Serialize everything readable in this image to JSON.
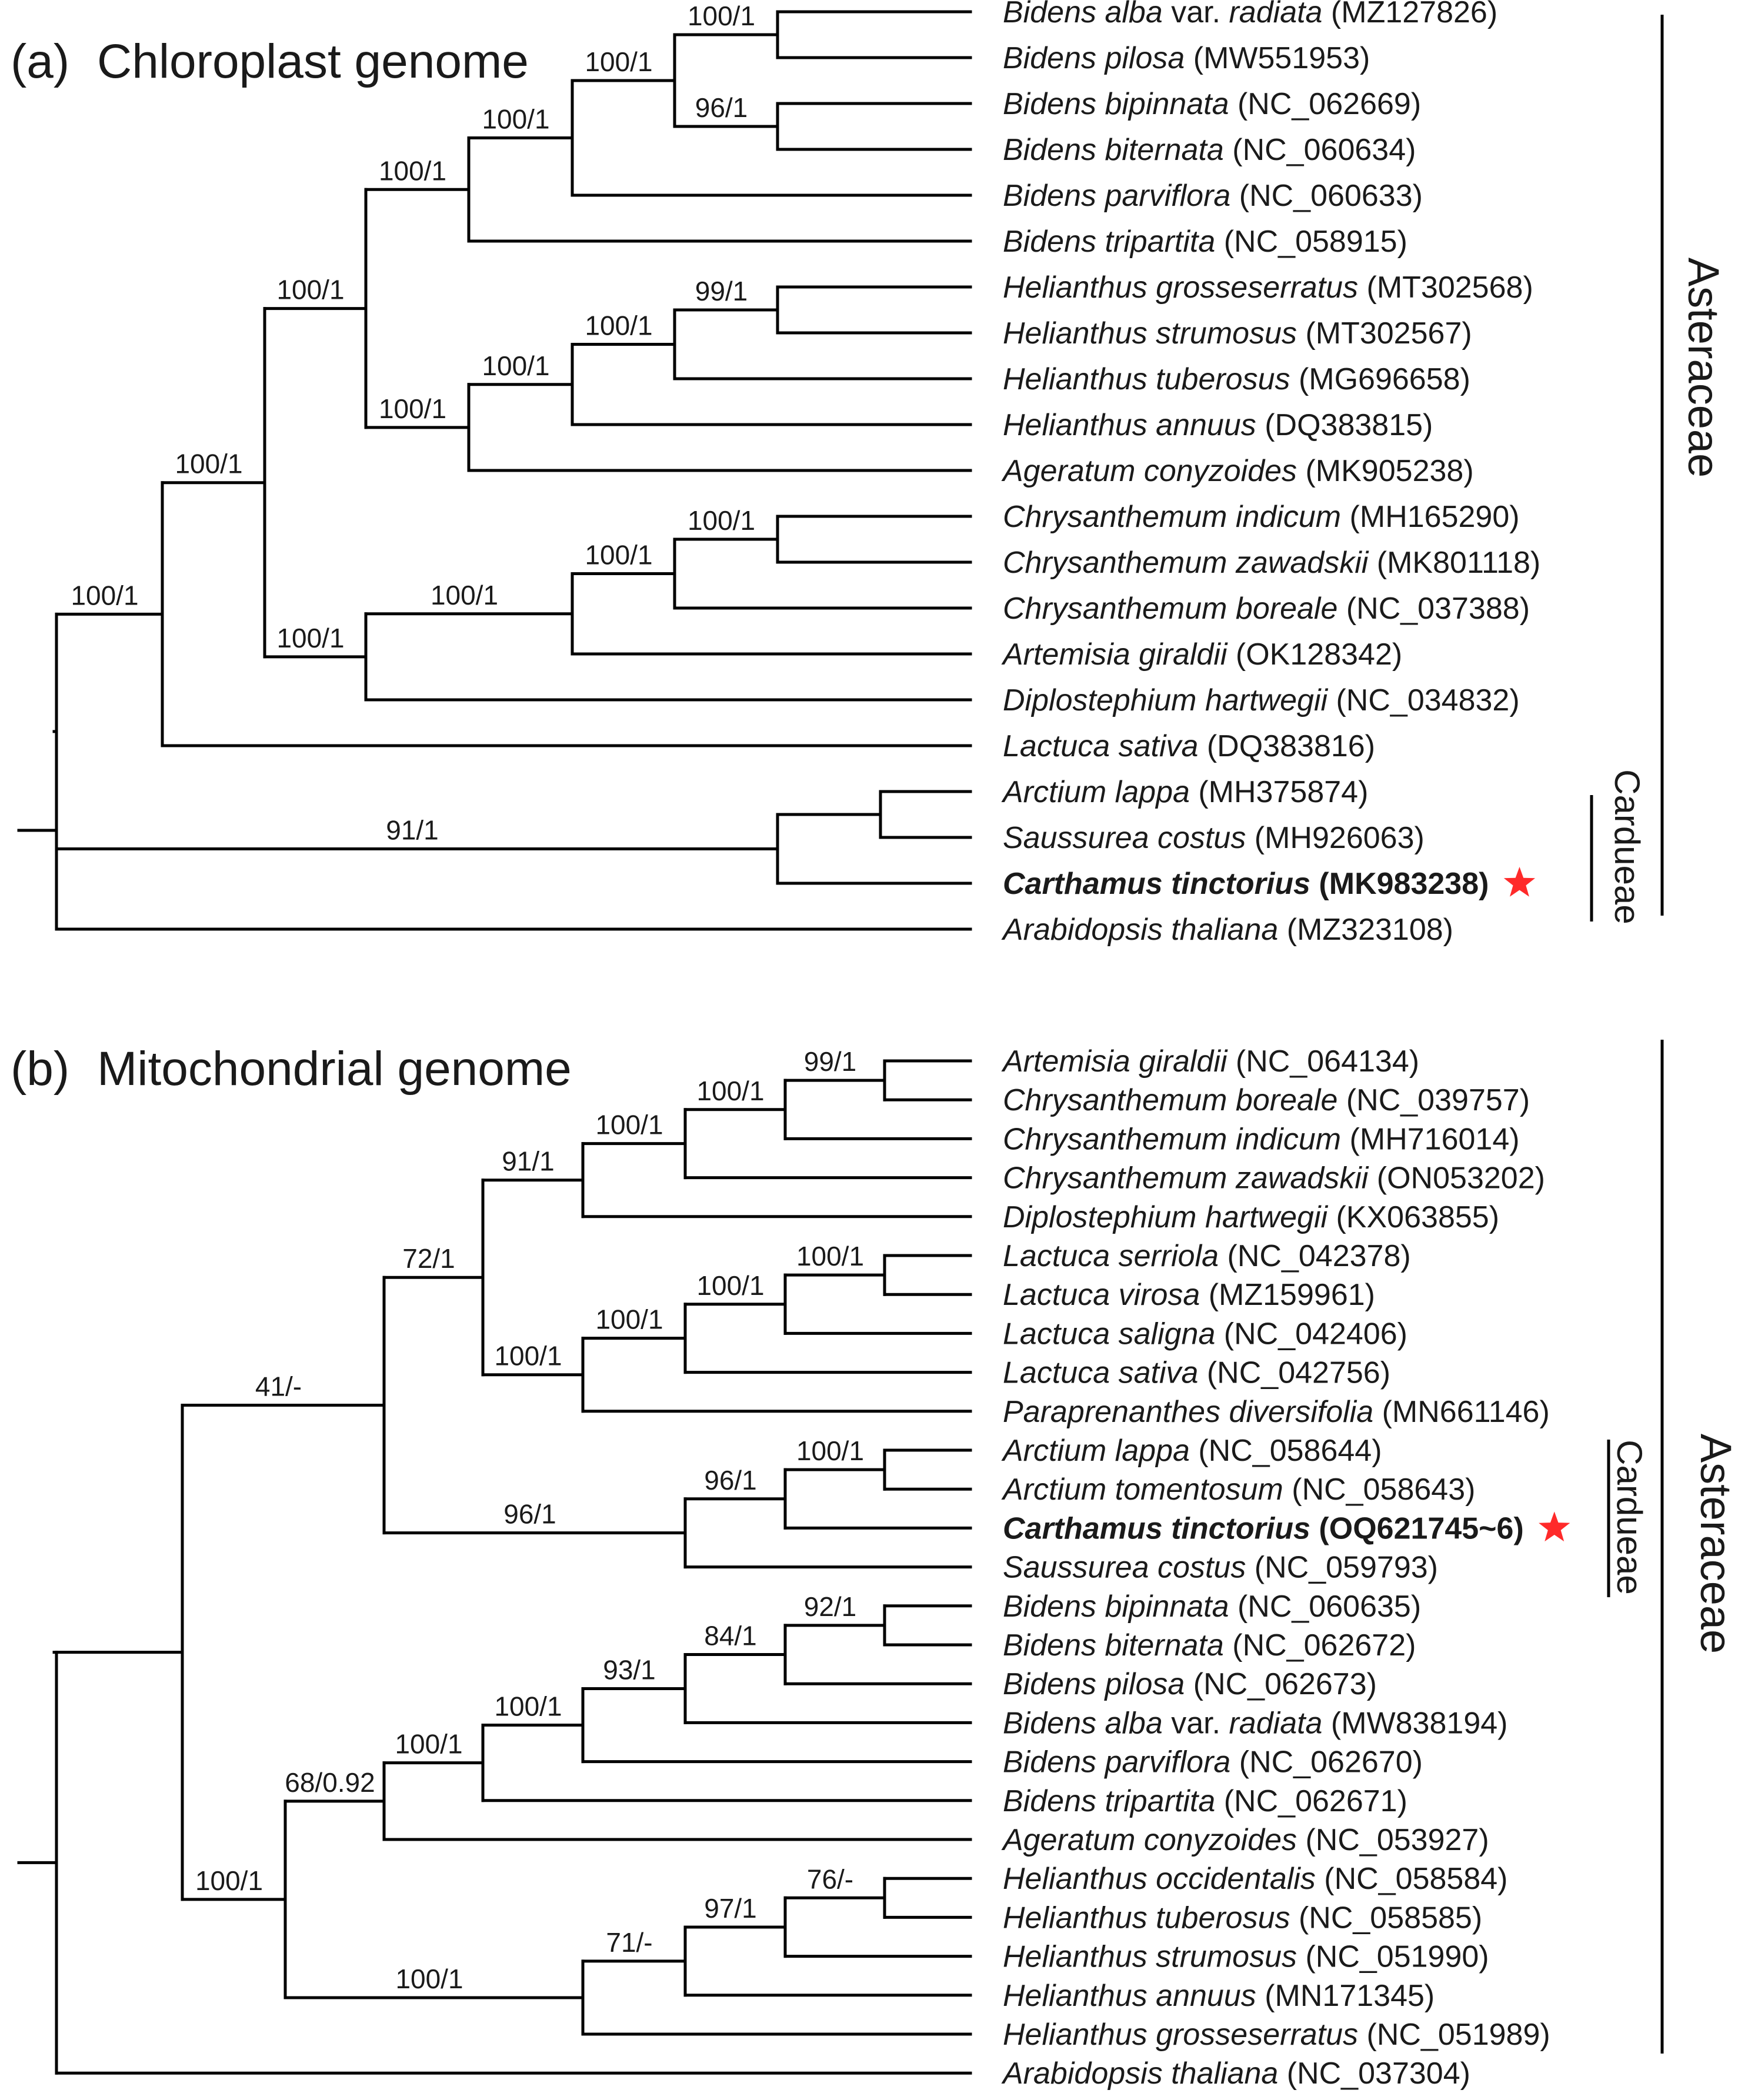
{
  "colors": {
    "star": "#ff2a2a",
    "line": "#000000"
  },
  "panels": [
    {
      "id": "a",
      "letter": "(a)",
      "title": "Chloroplast genome",
      "clade_labels": {
        "family": "Asteraceae",
        "tribe": "Cardueae"
      },
      "tips": [
        {
          "genus": "Bidens alba",
          "rank": "var.",
          "epithet": "radiata",
          "acc": "(MZ127826)"
        },
        {
          "genus": "Bidens pilosa",
          "acc": "(MW551953)"
        },
        {
          "genus": "Bidens bipinnata",
          "acc": "(NC_062669)"
        },
        {
          "genus": "Bidens biternata",
          "acc": "(NC_060634)"
        },
        {
          "genus": "Bidens parviflora",
          "acc": "(NC_060633)"
        },
        {
          "genus": "Bidens tripartita",
          "acc": "(NC_058915)"
        },
        {
          "genus": "Helianthus grosseserratus",
          "acc": "(MT302568)"
        },
        {
          "genus": "Helianthus strumosus",
          "acc": "(MT302567)"
        },
        {
          "genus": "Helianthus tuberosus",
          "acc": "(MG696658)"
        },
        {
          "genus": "Helianthus annuus",
          "acc": "(DQ383815)"
        },
        {
          "genus": "Ageratum conyzoides",
          "acc": "(MK905238)"
        },
        {
          "genus": "Chrysanthemum indicum",
          "acc": "(MH165290)"
        },
        {
          "genus": "Chrysanthemum zawadskii",
          "acc": "(MK801118)"
        },
        {
          "genus": "Chrysanthemum boreale",
          "acc": "(NC_037388)"
        },
        {
          "genus": "Artemisia giraldii",
          "acc": "(OK128342)"
        },
        {
          "genus": "Diplostephium hartwegii",
          "acc": "(NC_034832)"
        },
        {
          "genus": "Lactuca sativa",
          "acc": "(DQ383816)"
        },
        {
          "genus": "Arctium lappa",
          "acc": "(MH375874)"
        },
        {
          "genus": "Saussurea costus",
          "acc": "(MH926063)"
        },
        {
          "genus": "Carthamus tinctorius",
          "acc": "(MK983238)",
          "bold": true,
          "star": true
        },
        {
          "genus": "Arabidopsis thaliana",
          "acc": "(MZ323108)"
        }
      ],
      "supports": [
        "100/1",
        "100/1",
        "100/1",
        "100/1",
        "100/1",
        "100/1",
        "100/1",
        "96/1",
        "100/1",
        "100/1",
        "100/1",
        "99/1",
        "100/1",
        "100/1",
        "100/1",
        "100/1",
        "91/1"
      ]
    },
    {
      "id": "b",
      "letter": "(b)",
      "title": "Mitochondrial genome",
      "clade_labels": {
        "family": "Asteraceae",
        "tribe": "Cardueae"
      },
      "tips": [
        {
          "genus": "Artemisia giraldii",
          "acc": "(NC_064134)"
        },
        {
          "genus": "Chrysanthemum boreale",
          "acc": "(NC_039757)"
        },
        {
          "genus": "Chrysanthemum indicum",
          "acc": "(MH716014)"
        },
        {
          "genus": "Chrysanthemum zawadskii",
          "acc": "(ON053202)"
        },
        {
          "genus": "Diplostephium hartwegii",
          "acc": "(KX063855)"
        },
        {
          "genus": "Lactuca serriola",
          "acc": "(NC_042378)"
        },
        {
          "genus": "Lactuca virosa",
          "acc": "(MZ159961)"
        },
        {
          "genus": "Lactuca saligna",
          "acc": "(NC_042406)"
        },
        {
          "genus": "Lactuca sativa",
          "acc": "(NC_042756)"
        },
        {
          "genus": "Paraprenanthes diversifolia",
          "acc": "(MN661146)"
        },
        {
          "genus": "Arctium lappa",
          "acc": "(NC_058644)"
        },
        {
          "genus": "Arctium tomentosum",
          "acc": "(NC_058643)"
        },
        {
          "genus": "Carthamus tinctorius",
          "acc": "(OQ621745~6)",
          "bold": true,
          "star": true
        },
        {
          "genus": "Saussurea costus",
          "acc": "(NC_059793)"
        },
        {
          "genus": "Bidens bipinnata",
          "acc": "(NC_060635)"
        },
        {
          "genus": "Bidens biternata",
          "acc": "(NC_062672)"
        },
        {
          "genus": "Bidens pilosa",
          "acc": "(NC_062673)"
        },
        {
          "genus": "Bidens alba",
          "rank": "var.",
          "epithet": "radiata",
          "acc": "(MW838194)"
        },
        {
          "genus": "Bidens parviflora",
          "acc": "(NC_062670)"
        },
        {
          "genus": "Bidens tripartita",
          "acc": "(NC_062671)"
        },
        {
          "genus": "Ageratum conyzoides",
          "acc": "(NC_053927)"
        },
        {
          "genus": "Helianthus occidentalis",
          "acc": "(NC_058584)"
        },
        {
          "genus": "Helianthus tuberosus",
          "acc": "(NC_058585)"
        },
        {
          "genus": "Helianthus strumosus",
          "acc": "(NC_051990)"
        },
        {
          "genus": "Helianthus annuus",
          "acc": "(MN171345)"
        },
        {
          "genus": "Helianthus grosseserratus",
          "acc": "(NC_051989)"
        },
        {
          "genus": "Arabidopsis thaliana",
          "acc": "(NC_037304)"
        }
      ],
      "supports": [
        "99/1",
        "100/1",
        "100/1",
        "91/1",
        "100/1",
        "100/1",
        "100/1",
        "100/1",
        "72/1",
        "100/1",
        "96/1",
        "96/1",
        "41/-",
        "92/1",
        "84/1",
        "93/1",
        "100/1",
        "100/1",
        "68/0.92",
        "76/-",
        "97/1",
        "71/-",
        "100/1",
        "100/1"
      ]
    }
  ]
}
